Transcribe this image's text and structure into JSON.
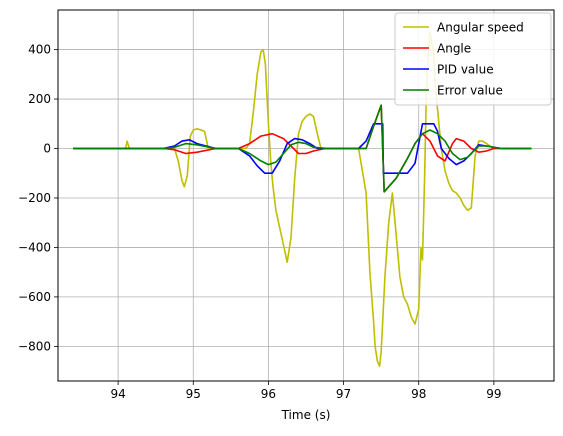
{
  "chart_data": {
    "type": "line",
    "title": "",
    "xlabel": "Time (s)",
    "ylabel": "",
    "xlim": [
      93.2,
      99.8
    ],
    "ylim": [
      -940,
      560
    ],
    "grid": true,
    "legend_position": "top-right",
    "x_ticks": [
      94,
      95,
      96,
      97,
      98,
      99
    ],
    "y_ticks": [
      -800,
      -600,
      -400,
      -200,
      0,
      200,
      400
    ],
    "x_tick_labels": [
      "94",
      "95",
      "96",
      "97",
      "98",
      "99"
    ],
    "y_tick_labels": [
      "−800",
      "−600",
      "−400",
      "−200",
      "0",
      "200",
      "400"
    ],
    "series": [
      {
        "name": "Angular speed",
        "color": "#bfbf00",
        "x": [
          93.4,
          93.7,
          94.0,
          94.1,
          94.12,
          94.15,
          94.5,
          94.75,
          94.8,
          94.85,
          94.88,
          94.92,
          94.96,
          95.0,
          95.05,
          95.1,
          95.15,
          95.2,
          95.35,
          95.5,
          95.7,
          95.75,
          95.8,
          95.85,
          95.9,
          95.93,
          95.96,
          96.0,
          96.03,
          96.06,
          96.1,
          96.15,
          96.2,
          96.25,
          96.3,
          96.35,
          96.4,
          96.45,
          96.5,
          96.55,
          96.6,
          96.65,
          96.7,
          96.8,
          96.9,
          97.0,
          97.1,
          97.2,
          97.3,
          97.35,
          97.4,
          97.42,
          97.45,
          97.48,
          97.5,
          97.52,
          97.55,
          97.6,
          97.65,
          97.7,
          97.75,
          97.8,
          97.85,
          97.9,
          97.95,
          98.0,
          98.03,
          98.05,
          98.08,
          98.1,
          98.12,
          98.15,
          98.2,
          98.22,
          98.25,
          98.3,
          98.35,
          98.4,
          98.45,
          98.5,
          98.55,
          98.6,
          98.65,
          98.7,
          98.75,
          98.8,
          98.85,
          98.9,
          99.0,
          99.1,
          99.5
        ],
        "values": [
          0,
          0,
          0,
          0,
          30,
          0,
          0,
          0,
          -50,
          -130,
          -155,
          -110,
          50,
          75,
          80,
          75,
          70,
          0,
          0,
          0,
          0,
          20,
          150,
          300,
          390,
          400,
          340,
          100,
          -50,
          -150,
          -250,
          -320,
          -390,
          -460,
          -360,
          -120,
          60,
          110,
          130,
          140,
          130,
          60,
          0,
          0,
          0,
          0,
          0,
          0,
          -180,
          -500,
          -700,
          -800,
          -860,
          -880,
          -820,
          -700,
          -520,
          -300,
          -180,
          -350,
          -520,
          -600,
          -630,
          -680,
          -710,
          -650,
          -400,
          -450,
          -100,
          200,
          350,
          470,
          380,
          250,
          160,
          0,
          -90,
          -140,
          -170,
          -180,
          -200,
          -230,
          -250,
          -240,
          -30,
          30,
          30,
          20,
          0,
          0,
          0
        ]
      },
      {
        "name": "Angle",
        "color": "#ff0000",
        "x": [
          93.4,
          94.6,
          94.75,
          94.9,
          95.05,
          95.3,
          95.6,
          95.75,
          95.9,
          96.05,
          96.2,
          96.3,
          96.4,
          96.5,
          96.6,
          96.75,
          97.0,
          97.2,
          97.3,
          97.4,
          97.5,
          97.52,
          97.54,
          97.7,
          97.85,
          97.95,
          98.05,
          98.15,
          98.25,
          98.35,
          98.45,
          98.5,
          98.6,
          98.7,
          98.8,
          98.9,
          99.0,
          99.2,
          99.5
        ],
        "values": [
          0,
          0,
          -5,
          -20,
          -15,
          0,
          0,
          20,
          50,
          60,
          40,
          10,
          -20,
          -20,
          -10,
          0,
          0,
          0,
          0,
          90,
          175,
          0,
          -175,
          -120,
          -40,
          20,
          60,
          30,
          -30,
          -50,
          20,
          40,
          30,
          0,
          -15,
          -10,
          0,
          0,
          0
        ]
      },
      {
        "name": "PID value",
        "color": "#0000ff",
        "x": [
          93.4,
          94.6,
          94.75,
          94.85,
          94.95,
          95.05,
          95.3,
          95.6,
          95.75,
          95.85,
          95.95,
          96.05,
          96.15,
          96.25,
          96.35,
          96.45,
          96.55,
          96.65,
          96.8,
          97.1,
          97.2,
          97.3,
          97.4,
          97.5,
          97.52,
          97.53,
          97.7,
          97.85,
          97.95,
          98.05,
          98.1,
          98.2,
          98.25,
          98.3,
          98.4,
          98.5,
          98.6,
          98.7,
          98.8,
          98.9,
          99.1,
          99.5
        ],
        "values": [
          0,
          0,
          10,
          30,
          35,
          20,
          0,
          0,
          -30,
          -70,
          -100,
          -100,
          -50,
          20,
          40,
          35,
          20,
          0,
          0,
          0,
          0,
          30,
          100,
          100,
          100,
          -100,
          -100,
          -100,
          -60,
          100,
          100,
          100,
          70,
          0,
          -40,
          -65,
          -50,
          -20,
          15,
          10,
          0,
          0
        ]
      },
      {
        "name": "Error value",
        "color": "#008000",
        "x": [
          93.4,
          94.6,
          94.75,
          94.9,
          95.05,
          95.3,
          95.6,
          95.75,
          95.9,
          96.0,
          96.1,
          96.2,
          96.3,
          96.4,
          96.5,
          96.6,
          96.8,
          97.1,
          97.2,
          97.3,
          97.4,
          97.5,
          97.52,
          97.54,
          97.7,
          97.85,
          97.95,
          98.05,
          98.15,
          98.25,
          98.35,
          98.45,
          98.55,
          98.65,
          98.8,
          98.9,
          99.1,
          99.5
        ],
        "values": [
          0,
          0,
          5,
          20,
          15,
          0,
          0,
          -20,
          -50,
          -65,
          -55,
          -20,
          15,
          25,
          20,
          5,
          0,
          0,
          0,
          0,
          90,
          175,
          0,
          -175,
          -120,
          -40,
          20,
          60,
          75,
          60,
          30,
          -20,
          -45,
          -35,
          10,
          10,
          0,
          0
        ]
      }
    ]
  }
}
